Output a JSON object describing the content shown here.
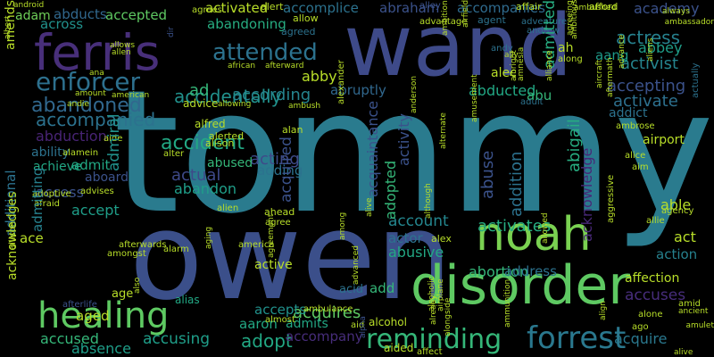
{
  "cloud": {
    "background": "#000000",
    "palette": [
      "#440154",
      "#482878",
      "#3e4989",
      "#31688e",
      "#26828e",
      "#1f9e89",
      "#35b779",
      "#6ece58",
      "#b5de2b",
      "#fde725"
    ],
    "words": [
      {
        "text": "tommy",
        "color": "#2a7b8e"
      },
      {
        "text": "owen",
        "color": "#3b4f8a"
      },
      {
        "text": "wand",
        "color": "#3e4a89"
      },
      {
        "text": "disorder",
        "color": "#5ec962"
      },
      {
        "text": "ferris",
        "color": "#482f7a"
      },
      {
        "text": "noah",
        "color": "#7ad151"
      },
      {
        "text": "healing",
        "color": "#5ec962"
      },
      {
        "text": "forrest",
        "color": "#2a788e"
      },
      {
        "text": "reminding",
        "color": "#35b779"
      },
      {
        "text": "enforcer",
        "color": "#2d708e"
      },
      {
        "text": "attended",
        "color": "#2c728e"
      },
      {
        "text": "abandoned",
        "color": "#31688e"
      },
      {
        "text": "accompanied",
        "color": "#2c728e"
      },
      {
        "text": "accidentally",
        "color": "#21918c"
      },
      {
        "text": "according",
        "color": "#25848e"
      },
      {
        "text": "accident",
        "color": "#22a884"
      },
      {
        "text": "adopt",
        "color": "#22a884"
      },
      {
        "text": "acting",
        "color": "#3e4a89"
      },
      {
        "text": "acquires",
        "color": "#5ec962"
      },
      {
        "text": "accusing",
        "color": "#1f9e89"
      },
      {
        "text": "accused",
        "color": "#35b779"
      },
      {
        "text": "absence",
        "color": "#1f9e89"
      },
      {
        "text": "accept",
        "color": "#1f9e89"
      },
      {
        "text": "access",
        "color": "#3b528b"
      },
      {
        "text": "activates",
        "color": "#27ad81"
      },
      {
        "text": "activate",
        "color": "#2d708e"
      },
      {
        "text": "accepting",
        "color": "#3b528b"
      },
      {
        "text": "actress",
        "color": "#26818e"
      },
      {
        "text": "activist",
        "color": "#25848e"
      },
      {
        "text": "accuses",
        "color": "#472d7b"
      },
      {
        "text": "acquire",
        "color": "#2a788e"
      },
      {
        "text": "abbey",
        "color": "#1f9e89"
      },
      {
        "text": "aang",
        "color": "#1e9b8a"
      },
      {
        "text": "academy",
        "color": "#3b528b"
      },
      {
        "text": "accompanies",
        "color": "#2f6b8e"
      },
      {
        "text": "accomplice",
        "color": "#2c728e"
      },
      {
        "text": "abraham",
        "color": "#3b528b"
      },
      {
        "text": "abandoning",
        "color": "#27ad81"
      },
      {
        "text": "activated",
        "color": "#b8de29"
      },
      {
        "text": "accepted",
        "color": "#5ec962"
      },
      {
        "text": "across",
        "color": "#21918c"
      },
      {
        "text": "adam",
        "color": "#6ece58"
      },
      {
        "text": "abducts",
        "color": "#31688e"
      },
      {
        "text": "abby",
        "color": "#b8de29"
      },
      {
        "text": "ad",
        "color": "#35b779"
      },
      {
        "text": "abruptly",
        "color": "#31688e"
      },
      {
        "text": "abducted",
        "color": "#22a884"
      },
      {
        "text": "abu",
        "color": "#35b779"
      },
      {
        "text": "addict",
        "color": "#2c728e"
      },
      {
        "text": "abduction",
        "color": "#482475"
      },
      {
        "text": "ability",
        "color": "#2c728e"
      },
      {
        "text": "achieve",
        "color": "#22a884"
      },
      {
        "text": "admit",
        "color": "#22a884"
      },
      {
        "text": "aboard",
        "color": "#3b528b"
      },
      {
        "text": "abused",
        "color": "#35b779"
      },
      {
        "text": "actual",
        "color": "#3e4a89"
      },
      {
        "text": "abandon",
        "color": "#1f9e89"
      },
      {
        "text": "adding",
        "color": "#2c728e"
      },
      {
        "text": "account",
        "color": "#24868e"
      },
      {
        "text": "actor",
        "color": "#2c728e"
      },
      {
        "text": "abusive",
        "color": "#22a884"
      },
      {
        "text": "abortion",
        "color": "#35b779"
      },
      {
        "text": "address",
        "color": "#2c728e"
      },
      {
        "text": "act",
        "color": "#b8de29"
      },
      {
        "text": "action",
        "color": "#26818e"
      },
      {
        "text": "able",
        "color": "#b8de29"
      },
      {
        "text": "active",
        "color": "#b8de29"
      },
      {
        "text": "accepts",
        "color": "#21918c"
      },
      {
        "text": "aaron",
        "color": "#22a884"
      },
      {
        "text": "admits",
        "color": "#22a884"
      },
      {
        "text": "accompany",
        "color": "#472d7b"
      },
      {
        "text": "add",
        "color": "#35b779"
      },
      {
        "text": "acid",
        "color": "#2c728e"
      },
      {
        "text": "affection",
        "color": "#b8de29"
      },
      {
        "text": "ace",
        "color": "#b8de29"
      },
      {
        "text": "aged",
        "color": "#b8de29"
      },
      {
        "text": "age",
        "color": "#b8de29"
      },
      {
        "text": "alias",
        "color": "#22a884"
      },
      {
        "text": "alan",
        "color": "#b8de29"
      },
      {
        "text": "alison",
        "color": "#b8de29"
      },
      {
        "text": "alfred",
        "color": "#b8de29"
      },
      {
        "text": "advice",
        "color": "#b8de29"
      },
      {
        "text": "alex",
        "color": "#b8de29"
      },
      {
        "text": "alert",
        "color": "#b8de29"
      },
      {
        "text": "allow",
        "color": "#b8de29"
      },
      {
        "text": "affair",
        "color": "#b8de29"
      },
      {
        "text": "afford",
        "color": "#b8de29"
      },
      {
        "text": "agent",
        "color": "#2c728e"
      },
      {
        "text": "agrees",
        "color": "#b8de29"
      },
      {
        "text": "agreed",
        "color": "#2c728e"
      },
      {
        "text": "afterward",
        "color": "#b8de29"
      },
      {
        "text": "african",
        "color": "#b8de29"
      },
      {
        "text": "advantage",
        "color": "#b8de29"
      },
      {
        "text": "alley",
        "color": "#3b528b"
      },
      {
        "text": "adventure",
        "color": "#2c728e"
      },
      {
        "text": "andrew",
        "color": "#2c728e"
      },
      {
        "text": "ah",
        "color": "#b8de29"
      },
      {
        "text": "along",
        "color": "#b8de29"
      },
      {
        "text": "alec",
        "color": "#b8de29"
      },
      {
        "text": "andy",
        "color": "#2c728e"
      },
      {
        "text": "adult",
        "color": "#2c728e"
      },
      {
        "text": "alcohol",
        "color": "#b8de29"
      },
      {
        "text": "ahead",
        "color": "#b8de29"
      },
      {
        "text": "alter",
        "color": "#b8de29"
      },
      {
        "text": "alerted",
        "color": "#b8de29"
      },
      {
        "text": "alamein",
        "color": "#b8de29"
      },
      {
        "text": "aide",
        "color": "#b8de29"
      },
      {
        "text": "afraid",
        "color": "#b8de29"
      },
      {
        "text": "advises",
        "color": "#b8de29"
      },
      {
        "text": "adoptive",
        "color": "#b8de29"
      },
      {
        "text": "afterwards",
        "color": "#b8de29"
      },
      {
        "text": "alien",
        "color": "#b8de29"
      },
      {
        "text": "agree",
        "color": "#b8de29"
      },
      {
        "text": "america",
        "color": "#b8de29"
      },
      {
        "text": "amongst",
        "color": "#b8de29"
      },
      {
        "text": "alarm",
        "color": "#b8de29"
      },
      {
        "text": "allie",
        "color": "#b8de29"
      },
      {
        "text": "agency",
        "color": "#b8de29"
      },
      {
        "text": "ambrose",
        "color": "#b8de29"
      },
      {
        "text": "airport",
        "color": "#b8de29"
      },
      {
        "text": "alice",
        "color": "#b8de29"
      },
      {
        "text": "aim",
        "color": "#b8de29"
      },
      {
        "text": "amid",
        "color": "#b8de29"
      },
      {
        "text": "ago",
        "color": "#b8de29"
      },
      {
        "text": "alone",
        "color": "#b8de29"
      },
      {
        "text": "alive",
        "color": "#b8de29"
      },
      {
        "text": "ambulance",
        "color": "#b8de29"
      },
      {
        "text": "aided",
        "color": "#b8de29"
      },
      {
        "text": "affect",
        "color": "#b8de29"
      },
      {
        "text": "afterlife",
        "color": "#3b528b"
      },
      {
        "text": "almost",
        "color": "#b8de29"
      },
      {
        "text": "aid",
        "color": "#b8de29"
      },
      {
        "text": "android",
        "color": "#b8de29"
      },
      {
        "text": "ambushed",
        "color": "#b8de29"
      },
      {
        "text": "always",
        "color": "#b8de29"
      },
      {
        "text": "ambassador",
        "color": "#b8de29"
      },
      {
        "text": "ancient",
        "color": "#b8de29"
      },
      {
        "text": "amulet",
        "color": "#b8de29"
      },
      {
        "text": "ally",
        "color": "#b8de29"
      },
      {
        "text": "allen",
        "color": "#b8de29"
      },
      {
        "text": "allows",
        "color": "#b8de29"
      },
      {
        "text": "ana",
        "color": "#b8de29"
      },
      {
        "text": "amount",
        "color": "#b8de29"
      },
      {
        "text": "american",
        "color": "#b8de29"
      },
      {
        "text": "andie",
        "color": "#b8de29"
      },
      {
        "text": "allowing",
        "color": "#b8de29"
      },
      {
        "text": "ambush",
        "color": "#b8de29"
      },
      {
        "text": "amends",
        "color": "#b8de29"
      },
      {
        "text": "additional",
        "color": "#2c728e"
      },
      {
        "text": "acknowledges",
        "color": "#b8de29"
      },
      {
        "text": "admitting",
        "color": "#26818e"
      },
      {
        "text": "admiral",
        "color": "#21918c"
      },
      {
        "text": "acquired",
        "color": "#3b528b"
      },
      {
        "text": "acquaintance",
        "color": "#3b528b"
      },
      {
        "text": "adopted",
        "color": "#35b779"
      },
      {
        "text": "activity",
        "color": "#3b528b"
      },
      {
        "text": "abuse",
        "color": "#3b528b"
      },
      {
        "text": "addition",
        "color": "#2c728e"
      },
      {
        "text": "admitted",
        "color": "#27ad81"
      },
      {
        "text": "abigail",
        "color": "#27ad81"
      },
      {
        "text": "acknowledge",
        "color": "#482878"
      },
      {
        "text": "actually",
        "color": "#2c728e"
      },
      {
        "text": "aggressive",
        "color": "#b8de29"
      },
      {
        "text": "alexander",
        "color": "#b8de29"
      },
      {
        "text": "allison",
        "color": "#b8de29"
      },
      {
        "text": "albert",
        "color": "#b8de29"
      },
      {
        "text": "airplane",
        "color": "#b8de29"
      },
      {
        "text": "alcoholic",
        "color": "#b8de29"
      },
      {
        "text": "alongside",
        "color": "#b8de29"
      },
      {
        "text": "already",
        "color": "#b8de29"
      },
      {
        "text": "alternate",
        "color": "#b8de29"
      },
      {
        "text": "ambition",
        "color": "#b8de29"
      },
      {
        "text": "ambitious",
        "color": "#b8de29"
      },
      {
        "text": "agreeing",
        "color": "#b8de29"
      },
      {
        "text": "advance",
        "color": "#b8de29"
      },
      {
        "text": "aliens",
        "color": "#b8de29"
      },
      {
        "text": "align",
        "color": "#b8de29"
      },
      {
        "text": "aircraft",
        "color": "#b8de29"
      },
      {
        "text": "albright",
        "color": "#b8de29"
      },
      {
        "text": "alliance",
        "color": "#b8de29"
      },
      {
        "text": "although",
        "color": "#b8de29"
      },
      {
        "text": "airfield",
        "color": "#b8de29"
      },
      {
        "text": "amusement",
        "color": "#b8de29"
      },
      {
        "text": "allowed",
        "color": "#b8de29"
      },
      {
        "text": "aftermath",
        "color": "#b8de29"
      },
      {
        "text": "ammunition",
        "color": "#b8de29"
      },
      {
        "text": "amnesia",
        "color": "#b8de29"
      },
      {
        "text": "anderson",
        "color": "#b8de29"
      },
      {
        "text": "agreement",
        "color": "#b8de29"
      },
      {
        "text": "also",
        "color": "#b8de29"
      },
      {
        "text": "aging",
        "color": "#b8de29"
      },
      {
        "text": "advanced",
        "color": "#b8de29"
      },
      {
        "text": "among",
        "color": "#b8de29"
      },
      {
        "text": "alpha",
        "color": "#3b528b"
      },
      {
        "text": "alive",
        "color": "#b8de29"
      },
      {
        "text": "dir",
        "color": "#3b528b"
      }
    ]
  }
}
